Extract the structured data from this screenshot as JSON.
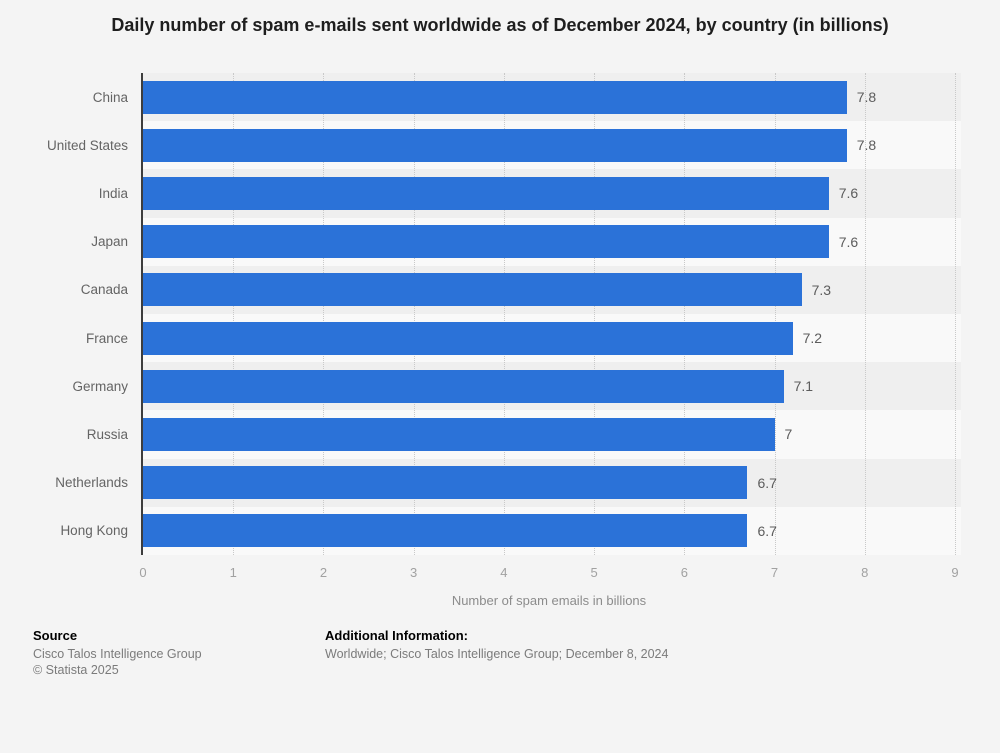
{
  "title": "Daily number of spam e-mails sent worldwide as of December 2024, by country (in billions)",
  "chart_data": {
    "type": "bar",
    "orientation": "horizontal",
    "title": "Daily number of spam e-mails sent worldwide as of December 2024, by country (in billions)",
    "categories": [
      "China",
      "United States",
      "India",
      "Japan",
      "Canada",
      "France",
      "Germany",
      "Russia",
      "Netherlands",
      "Hong Kong"
    ],
    "values": [
      7.8,
      7.8,
      7.6,
      7.6,
      7.3,
      7.2,
      7.1,
      7,
      6.7,
      6.7
    ],
    "value_labels": [
      "7.8",
      "7.8",
      "7.6",
      "7.6",
      "7.3",
      "7.2",
      "7.1",
      "7",
      "6.7",
      "6.7"
    ],
    "xlabel": "Number of spam emails in billions",
    "ylabel": "",
    "xlim": [
      0,
      9
    ],
    "xticks": [
      0,
      1,
      2,
      3,
      4,
      5,
      6,
      7,
      8,
      9
    ],
    "grid": "dotted-vertical",
    "legend": "none",
    "bar_color": "#2b72d8",
    "row_band_colors": [
      "#efefef",
      "#f9f9f9"
    ],
    "axis_line_color": "#3d3d3d"
  },
  "footer": {
    "source_label": "Source",
    "source_name": "Cisco Talos Intelligence Group",
    "copyright": "© Statista 2025",
    "additional_label": "Additional Information:",
    "additional_text": "Worldwide; Cisco Talos Intelligence Group; December 8, 2024"
  }
}
